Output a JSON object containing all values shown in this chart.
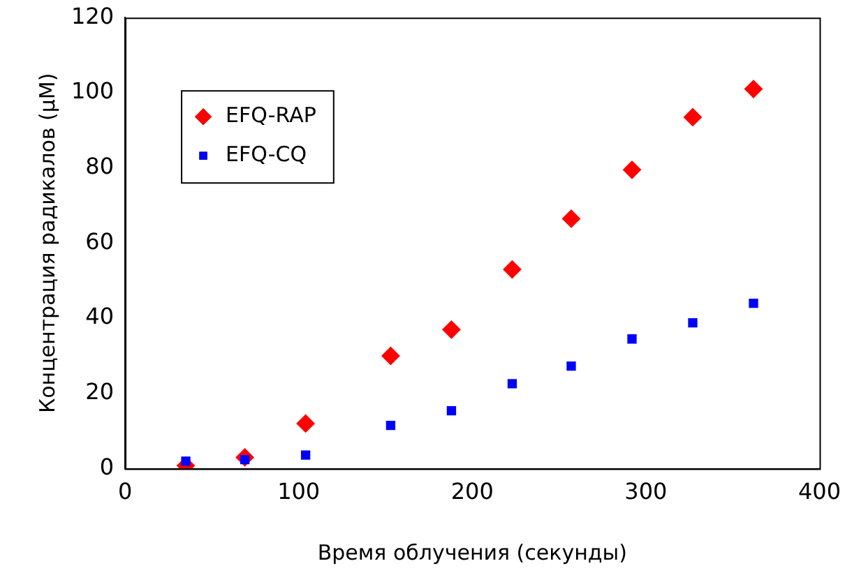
{
  "chart_data": {
    "type": "scatter",
    "xlabel": "Время облучения (секунды)",
    "ylabel": "Концентрация радикалов (μM)",
    "x": [
      35,
      69,
      104,
      153,
      188,
      223,
      257,
      292,
      327,
      362
    ],
    "series": [
      {
        "name": "EFQ-RAP",
        "color": "#ff0000",
        "marker": "diamond",
        "values": [
          0.8,
          3,
          12,
          30,
          37,
          53,
          66.5,
          79.5,
          93.5,
          101
        ]
      },
      {
        "name": "EFQ-CQ",
        "color": "#0000ff",
        "marker": "square",
        "values": [
          2,
          2.4,
          3.6,
          11.5,
          15.4,
          22.6,
          27.3,
          34.5,
          38.8,
          44
        ]
      }
    ],
    "xlim": [
      0,
      400
    ],
    "xticks": [
      0,
      100,
      200,
      300,
      400
    ],
    "ylim": [
      0,
      120
    ],
    "yticks": [
      0,
      20,
      40,
      60,
      80,
      100,
      120
    ],
    "grid": false,
    "legend": "top left"
  }
}
